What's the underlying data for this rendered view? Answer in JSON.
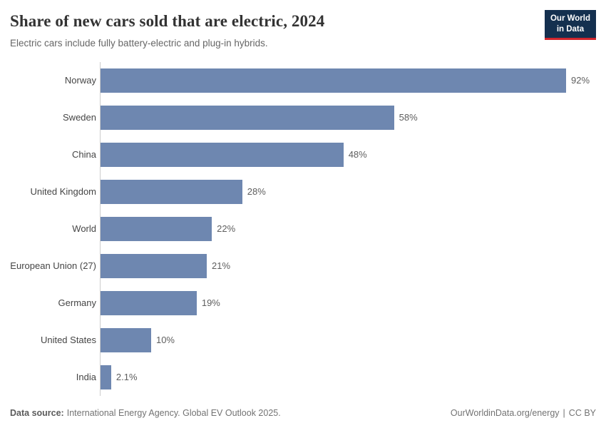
{
  "header": {
    "title": "Share of new cars sold that are electric, 2024",
    "subtitle": "Electric cars include fully battery-electric and plug-in hybrids.",
    "logo": {
      "line1": "Our World",
      "line2": "in Data",
      "bg_color": "#14304f",
      "accent_color": "#d2262c"
    }
  },
  "chart_data": {
    "type": "bar",
    "orientation": "horizontal",
    "title": "Share of new cars sold that are electric, 2024",
    "subtitle": "Electric cars include fully battery-electric and plug-in hybrids.",
    "categories": [
      "Norway",
      "Sweden",
      "China",
      "United Kingdom",
      "World",
      "European Union (27)",
      "Germany",
      "United States",
      "India"
    ],
    "values": [
      92,
      58,
      48,
      28,
      22,
      21,
      19,
      10,
      2.1
    ],
    "value_labels": [
      "92%",
      "58%",
      "48%",
      "28%",
      "22%",
      "21%",
      "19%",
      "10%",
      "2.1%"
    ],
    "unit": "%",
    "xlim": [
      0,
      92
    ],
    "grid": false,
    "legend": "none",
    "bar_color": "#6e87b0",
    "axis_line_color": "#cccccc"
  },
  "footer": {
    "source_label": "Data source:",
    "source_text": "International Energy Agency. Global EV Outlook 2025.",
    "url": "OurWorldinData.org/energy",
    "separator": "|",
    "license": "CC BY"
  }
}
